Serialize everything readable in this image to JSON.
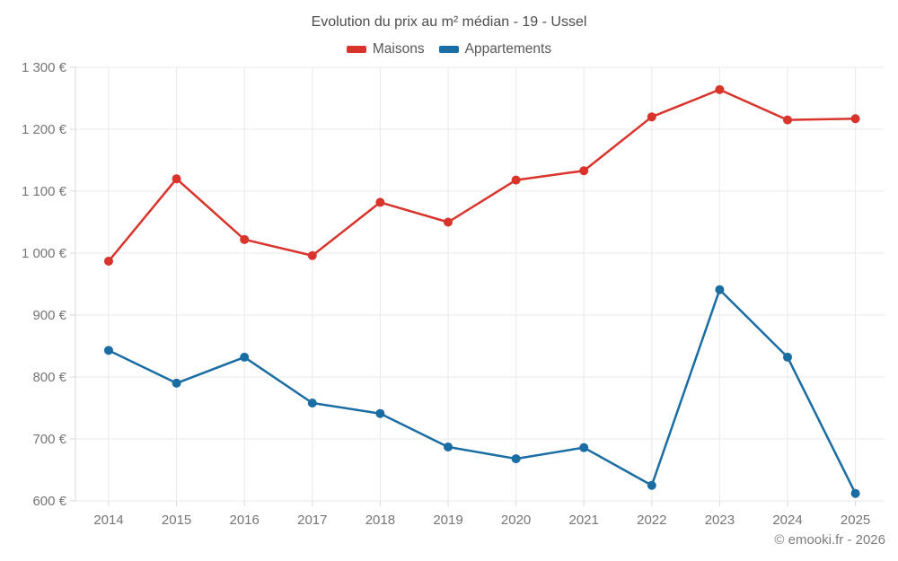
{
  "title": "Evolution du prix au m² médian - 19 - Ussel",
  "copyright": "© emooki.fr - 2026",
  "chart_data": {
    "type": "line",
    "title": "Evolution du prix au m² médian - 19 - Ussel",
    "categories": [
      "2014",
      "2015",
      "2016",
      "2017",
      "2018",
      "2019",
      "2020",
      "2021",
      "2022",
      "2023",
      "2024",
      "2025"
    ],
    "series": [
      {
        "name": "Maisons",
        "color": "#d8342c",
        "values": [
          987,
          1120,
          1022,
          996,
          1082,
          1050,
          1118,
          1133,
          1220,
          1264,
          1215,
          1217
        ]
      },
      {
        "name": "Appartements",
        "color": "#1a6da3",
        "values": [
          843,
          790,
          832,
          758,
          741,
          687,
          668,
          686,
          625,
          941,
          832,
          612
        ]
      }
    ],
    "xlabel": "",
    "ylabel": "",
    "ylim": [
      600,
      1300
    ],
    "y_ticks": [
      600,
      700,
      800,
      900,
      1000,
      1100,
      1200,
      1300
    ],
    "y_tick_suffix": " €",
    "grid": true,
    "legend_position": "top"
  },
  "colors": {
    "grid": "#e9e9e9",
    "axis": "#d9d9d9",
    "tick_label": "#757575"
  }
}
